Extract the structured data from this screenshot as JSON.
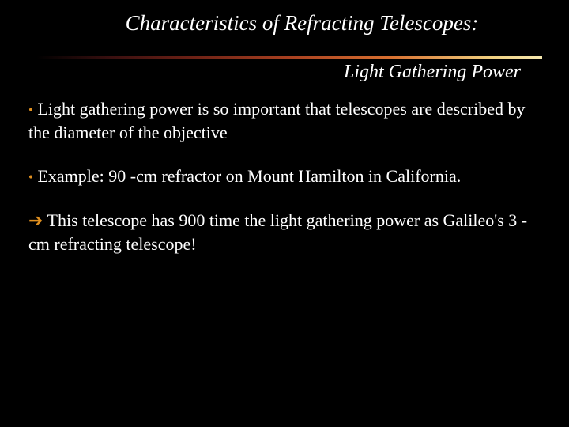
{
  "slide": {
    "title": "Characteristics of  Refracting Telescopes:",
    "subtitle": "Light Gathering Power",
    "para1_lead": " Light gathering power is so important that telescopes are described by the diameter of the objective",
    "para2_lead": " Example: 90 -cm refractor on Mount Hamilton in California.",
    "para3": " This telescope has 900 time the light gathering power as Galileo's 3 -cm refracting telescope!"
  },
  "style": {
    "background_color": "#000000",
    "text_color": "#ffffff",
    "accent_color": "#e09020",
    "title_fontsize": 27,
    "subtitle_fontsize": 24,
    "body_fontsize": 22,
    "font_family": "Georgia, Times New Roman, serif",
    "title_style": "italic",
    "subtitle_style": "italic",
    "gradient_colors": [
      "#000000",
      "#3a1010",
      "#6a2015",
      "#a84020",
      "#d87030",
      "#f0d080",
      "#f5e8b0"
    ],
    "slide_width": 720,
    "slide_height": 540
  }
}
